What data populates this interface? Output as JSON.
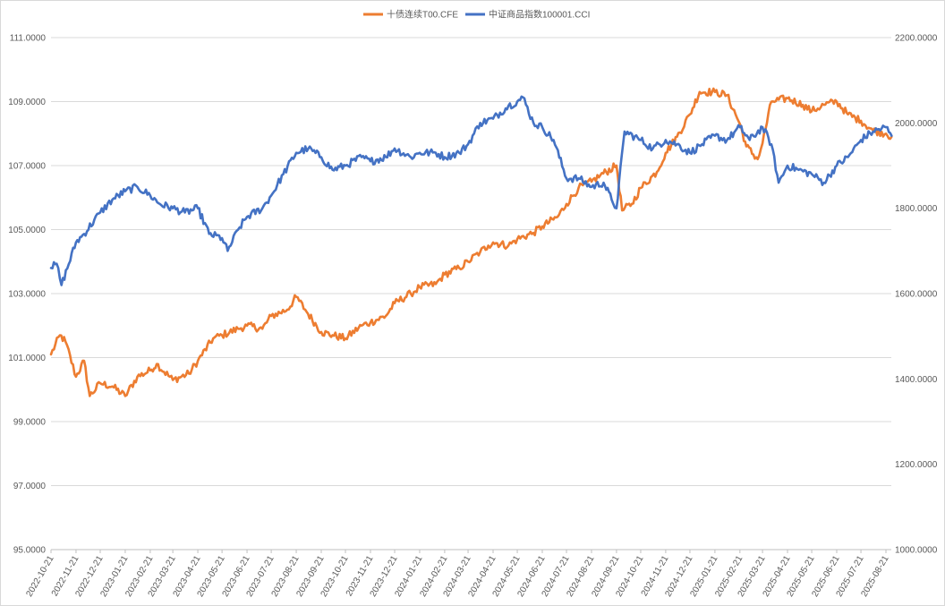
{
  "chart_data": {
    "type": "line",
    "legend_position": "top-center",
    "grid": true,
    "y_left": {
      "min": 95,
      "max": 111,
      "step": 2,
      "ticks": [
        "95.0000",
        "97.0000",
        "99.0000",
        "101.0000",
        "103.0000",
        "105.0000",
        "107.0000",
        "109.0000",
        "111.0000"
      ]
    },
    "y_right": {
      "min": 1000,
      "max": 2200,
      "step": 200,
      "ticks": [
        "1000.0000",
        "1200.0000",
        "1400.0000",
        "1600.0000",
        "1800.0000",
        "2000.0000",
        "2200.0000"
      ]
    },
    "x_ticks": [
      "2022-10-21",
      "2022-11-21",
      "2022-12-21",
      "2023-01-21",
      "2023-02-21",
      "2023-03-21",
      "2023-04-21",
      "2023-05-21",
      "2023-06-21",
      "2023-07-21",
      "2023-08-21",
      "2023-09-21",
      "2023-10-21",
      "2023-11-21",
      "2023-12-21",
      "2024-01-21",
      "2024-02-21",
      "2024-03-21",
      "2024-04-21",
      "2024-05-21",
      "2024-06-21",
      "2024-07-21",
      "2024-08-21",
      "2024-09-21",
      "2024-10-21",
      "2024-11-21",
      "2024-12-21",
      "2025-01-21",
      "2025-02-21",
      "2025-03-21",
      "2025-04-21",
      "2025-05-21",
      "2025-06-21",
      "2025-07-21",
      "2025-08-21"
    ],
    "series": [
      {
        "name": "十债连续T00.CFE",
        "axis": "left",
        "color": "#ED7D31",
        "x": [
          "2022-10-21",
          "2022-11-01",
          "2022-11-08",
          "2022-11-21",
          "2022-12-01",
          "2022-12-08",
          "2022-12-21",
          "2023-01-05",
          "2023-01-21",
          "2023-02-05",
          "2023-02-21",
          "2023-03-01",
          "2023-03-21",
          "2023-04-10",
          "2023-04-21",
          "2023-05-10",
          "2023-05-21",
          "2023-06-10",
          "2023-06-21",
          "2023-07-10",
          "2023-07-21",
          "2023-08-10",
          "2023-08-21",
          "2023-09-01",
          "2023-09-21",
          "2023-10-05",
          "2023-10-21",
          "2023-11-10",
          "2023-11-21",
          "2023-12-10",
          "2023-12-21",
          "2024-01-10",
          "2024-01-21",
          "2024-02-10",
          "2024-02-21",
          "2024-03-10",
          "2024-03-21",
          "2024-04-05",
          "2024-04-15",
          "2024-04-21",
          "2024-05-10",
          "2024-05-21",
          "2024-06-10",
          "2024-06-21",
          "2024-07-10",
          "2024-07-21",
          "2024-08-05",
          "2024-08-21",
          "2024-09-01",
          "2024-09-21",
          "2024-09-28",
          "2024-10-10",
          "2024-10-21",
          "2024-11-10",
          "2024-11-21",
          "2024-12-05",
          "2024-12-21",
          "2025-01-02",
          "2025-01-21",
          "2025-02-05",
          "2025-02-21",
          "2025-03-01",
          "2025-03-15",
          "2025-03-21",
          "2025-04-01",
          "2025-04-21",
          "2025-05-10",
          "2025-05-21",
          "2025-06-05",
          "2025-06-21",
          "2025-07-05",
          "2025-07-21",
          "2025-08-05",
          "2025-08-21",
          "2025-08-28"
        ],
        "values": [
          101.1,
          101.7,
          101.5,
          100.4,
          100.9,
          99.8,
          100.2,
          100.1,
          99.8,
          100.4,
          100.6,
          100.8,
          100.3,
          100.5,
          100.9,
          101.6,
          101.7,
          101.9,
          102.0,
          101.9,
          102.3,
          102.5,
          102.9,
          102.5,
          101.8,
          101.7,
          101.6,
          102.0,
          102.1,
          102.3,
          102.7,
          103.0,
          103.2,
          103.3,
          103.6,
          103.8,
          104.0,
          104.3,
          104.5,
          104.6,
          104.5,
          104.7,
          104.9,
          105.1,
          105.4,
          105.8,
          106.3,
          106.5,
          106.7,
          107.0,
          105.6,
          105.8,
          106.3,
          106.8,
          107.4,
          107.9,
          108.6,
          109.3,
          109.3,
          109.2,
          108.3,
          107.6,
          107.2,
          107.7,
          109.0,
          109.1,
          108.9,
          108.7,
          108.9,
          109.0,
          108.6,
          108.4,
          108.1,
          108.0,
          107.9
        ]
      },
      {
        "name": "中证商品指数100001.CCI",
        "axis": "right",
        "color": "#4472C4",
        "x": [
          "2022-10-21",
          "2022-10-28",
          "2022-11-03",
          "2022-11-21",
          "2022-12-01",
          "2022-12-21",
          "2023-01-05",
          "2023-01-21",
          "2023-02-05",
          "2023-02-21",
          "2023-03-05",
          "2023-03-21",
          "2023-04-05",
          "2023-04-21",
          "2023-05-05",
          "2023-05-21",
          "2023-05-28",
          "2023-06-10",
          "2023-06-21",
          "2023-07-10",
          "2023-07-21",
          "2023-08-05",
          "2023-08-21",
          "2023-09-05",
          "2023-09-21",
          "2023-10-05",
          "2023-10-21",
          "2023-11-10",
          "2023-11-21",
          "2023-12-10",
          "2023-12-21",
          "2024-01-10",
          "2024-01-21",
          "2024-02-10",
          "2024-02-21",
          "2024-03-10",
          "2024-03-21",
          "2024-04-05",
          "2024-04-21",
          "2024-05-10",
          "2024-05-21",
          "2024-05-28",
          "2024-06-10",
          "2024-06-21",
          "2024-07-05",
          "2024-07-21",
          "2024-08-05",
          "2024-08-21",
          "2024-09-05",
          "2024-09-15",
          "2024-09-21",
          "2024-10-01",
          "2024-10-21",
          "2024-11-05",
          "2024-11-21",
          "2024-12-05",
          "2024-12-21",
          "2025-01-05",
          "2025-01-21",
          "2025-02-05",
          "2025-02-21",
          "2025-03-05",
          "2025-03-21",
          "2025-04-01",
          "2025-04-10",
          "2025-04-21",
          "2025-05-05",
          "2025-05-21",
          "2025-06-05",
          "2025-06-21",
          "2025-07-05",
          "2025-07-21",
          "2025-08-05",
          "2025-08-21",
          "2025-08-28"
        ],
        "values": [
          1660,
          1670,
          1620,
          1720,
          1740,
          1790,
          1820,
          1840,
          1850,
          1830,
          1810,
          1800,
          1790,
          1800,
          1740,
          1730,
          1700,
          1750,
          1780,
          1800,
          1830,
          1880,
          1930,
          1940,
          1920,
          1890,
          1900,
          1920,
          1910,
          1920,
          1940,
          1920,
          1930,
          1930,
          1920,
          1930,
          1950,
          2000,
          2010,
          2040,
          2050,
          2060,
          2000,
          1990,
          1960,
          1870,
          1870,
          1850,
          1860,
          1820,
          1800,
          1980,
          1960,
          1940,
          1960,
          1950,
          1930,
          1950,
          1970,
          1960,
          1990,
          1960,
          1990,
          1950,
          1860,
          1900,
          1890,
          1880,
          1860,
          1900,
          1920,
          1960,
          1980,
          1990,
          1970
        ]
      }
    ]
  }
}
